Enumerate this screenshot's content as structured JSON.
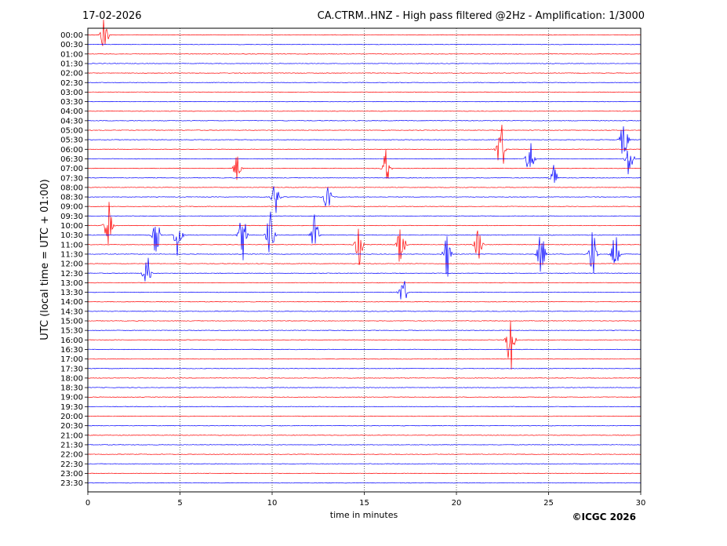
{
  "header": {
    "date": "17-02-2026",
    "title": "CA.CTRM..HNZ - High pass filtered @2Hz - Amplification: 1/3000"
  },
  "footer": {
    "copyright": "©ICGC 2026"
  },
  "chart_data": {
    "type": "line",
    "title": "CA.CTRM..HNZ - High pass filtered @2Hz - Amplification: 1/3000",
    "xlabel": "time in minutes",
    "ylabel": "UTC (local time = UTC + 01:00)",
    "xlim": [
      0,
      30
    ],
    "xticks": [
      0,
      5,
      10,
      15,
      20,
      25,
      30
    ],
    "grid_x": true,
    "trace_colors": [
      "#ff0000",
      "#0000ff"
    ],
    "rows": [
      "00:00",
      "00:30",
      "01:00",
      "01:30",
      "02:00",
      "02:30",
      "03:00",
      "03:30",
      "04:00",
      "04:30",
      "05:00",
      "05:30",
      "06:00",
      "06:30",
      "07:00",
      "07:30",
      "08:00",
      "08:30",
      "09:00",
      "09:30",
      "10:00",
      "10:30",
      "11:00",
      "11:30",
      "12:00",
      "12:30",
      "13:00",
      "13:30",
      "14:00",
      "14:30",
      "15:00",
      "15:30",
      "16:00",
      "16:30",
      "17:00",
      "17:30",
      "18:00",
      "18:30",
      "19:00",
      "19:30",
      "20:00",
      "20:30",
      "21:00",
      "21:30",
      "22:00",
      "22:30",
      "23:00",
      "23:30"
    ],
    "events": [
      {
        "row": 0,
        "minute": 0.9,
        "amplitude": 2.2
      },
      {
        "row": 11,
        "minute": 29.1,
        "amplitude": 2.5
      },
      {
        "row": 13,
        "minute": 29.4,
        "amplitude": 2.2
      },
      {
        "row": 12,
        "minute": 22.4,
        "amplitude": 3.5
      },
      {
        "row": 13,
        "minute": 24.0,
        "amplitude": 2.5
      },
      {
        "row": 14,
        "minute": 8.1,
        "amplitude": 1.5
      },
      {
        "row": 14,
        "minute": 16.2,
        "amplitude": 2.0
      },
      {
        "row": 15,
        "minute": 25.3,
        "amplitude": 1.5
      },
      {
        "row": 17,
        "minute": 10.2,
        "amplitude": 2.0
      },
      {
        "row": 17,
        "minute": 13.0,
        "amplitude": 1.5
      },
      {
        "row": 20,
        "minute": 1.1,
        "amplitude": 2.8
      },
      {
        "row": 21,
        "minute": 3.7,
        "amplitude": 2.5
      },
      {
        "row": 21,
        "minute": 4.9,
        "amplitude": 2.8
      },
      {
        "row": 21,
        "minute": 8.4,
        "amplitude": 3.0
      },
      {
        "row": 21,
        "minute": 9.9,
        "amplitude": 2.8
      },
      {
        "row": 21,
        "minute": 12.3,
        "amplitude": 2.5
      },
      {
        "row": 22,
        "minute": 14.7,
        "amplitude": 2.2
      },
      {
        "row": 22,
        "minute": 17.0,
        "amplitude": 2.8
      },
      {
        "row": 23,
        "minute": 19.5,
        "amplitude": 2.5
      },
      {
        "row": 22,
        "minute": 21.2,
        "amplitude": 2.0
      },
      {
        "row": 23,
        "minute": 24.6,
        "amplitude": 2.5
      },
      {
        "row": 23,
        "minute": 27.4,
        "amplitude": 2.8
      },
      {
        "row": 23,
        "minute": 28.6,
        "amplitude": 2.5
      },
      {
        "row": 25,
        "minute": 3.2,
        "amplitude": 2.0
      },
      {
        "row": 27,
        "minute": 17.1,
        "amplitude": 1.8
      },
      {
        "row": 32,
        "minute": 22.95,
        "amplitude": 4.5
      }
    ]
  }
}
